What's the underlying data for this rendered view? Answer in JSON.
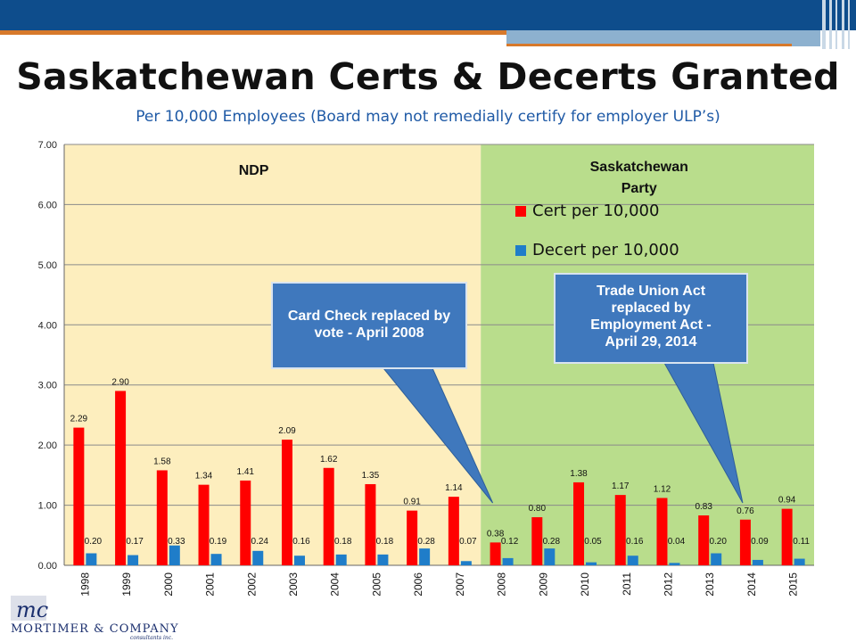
{
  "header": {
    "title": "Saskatchewan  Certs & Decerts Granted",
    "subtitle": "Per 10,000 Employees (Board may not remedially certify for employer ULP’s)"
  },
  "colors": {
    "header_blue": "#0e4d8c",
    "accent_orange": "#d7792b",
    "ndp_region": "#fdeebe",
    "sask_party_region": "#b9dd8c",
    "cert": "#ff0000",
    "decert": "#1f7dc9",
    "callout": "#3f78bd"
  },
  "chart_data": {
    "type": "bar",
    "title": "",
    "xlabel": "",
    "ylabel": "",
    "ylim": [
      0,
      7
    ],
    "y_ticks": [
      "0.00",
      "1.00",
      "2.00",
      "3.00",
      "4.00",
      "5.00",
      "6.00",
      "7.00"
    ],
    "grid": true,
    "legend_placement": "top-right",
    "categories": [
      "1998",
      "1999",
      "2000",
      "2001",
      "2002",
      "2003",
      "2004",
      "2005",
      "2006",
      "2007",
      "2008",
      "2009",
      "2010",
      "2011",
      "2012",
      "2013",
      "2014",
      "2015"
    ],
    "series": [
      {
        "name": "Cert per 10,000",
        "color": "#ff0000",
        "values": [
          2.29,
          2.9,
          1.58,
          1.34,
          1.41,
          2.09,
          1.62,
          1.35,
          0.91,
          1.14,
          0.38,
          0.8,
          1.38,
          1.17,
          1.12,
          0.83,
          0.76,
          0.94
        ],
        "labels": [
          "2.29",
          "2.90",
          "1.58",
          "1.34",
          "1.41",
          "2.09",
          "1.62",
          "1.35",
          "0.91",
          "1.14",
          "0.38",
          "0.80",
          "1.38",
          "1.17",
          "1.12",
          "0.83",
          "0.76",
          "0.94"
        ]
      },
      {
        "name": "Decert per 10,000",
        "color": "#1f7dc9",
        "values": [
          0.2,
          0.17,
          0.33,
          0.19,
          0.24,
          0.16,
          0.18,
          0.18,
          0.28,
          0.07,
          0.12,
          0.28,
          0.05,
          0.16,
          0.04,
          0.2,
          0.09,
          0.11
        ],
        "labels": [
          "0.20",
          "0.17",
          "0.33",
          "0.19",
          "0.24",
          "0.16",
          "0.18",
          "0.18",
          "0.28",
          "0.07",
          "0.12",
          "0.28",
          "0.05",
          "0.16",
          "0.04",
          "0.20",
          "0.09",
          "0.11"
        ]
      }
    ],
    "regions": [
      {
        "label": "NDP",
        "from": "1998",
        "to": "2007",
        "color": "#fdeebe"
      },
      {
        "label": "Saskatchewan Party",
        "from": "2008",
        "to": "2015",
        "color": "#b9dd8c"
      }
    ],
    "annotations": [
      {
        "text": "Card Check replaced by vote - April 2008",
        "points_to": "2008"
      },
      {
        "text": "Trade Union Act replaced by Employment Act - April 29, 2014",
        "points_to": "2014"
      }
    ]
  },
  "logo": {
    "name": "MORTIMER & COMPANY",
    "sub": "consultants inc.",
    "mark": "mc"
  }
}
